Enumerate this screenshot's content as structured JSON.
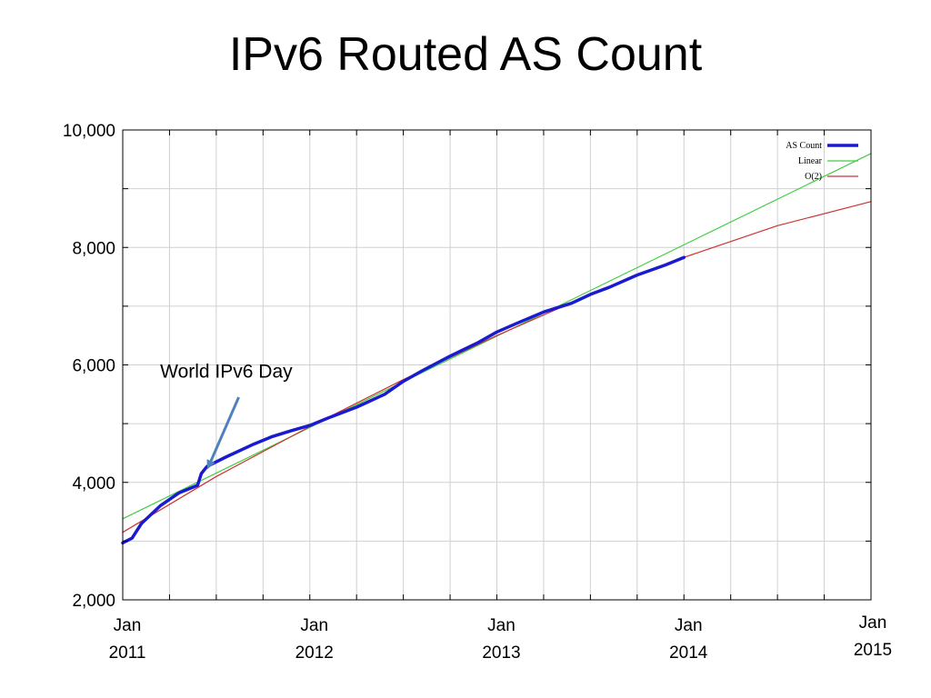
{
  "slide": {
    "title": "IPv6 Routed AS Count"
  },
  "chart_data": {
    "type": "line",
    "title": "IPv6 Routed AS Count",
    "xlabel": "",
    "ylabel": "",
    "xlim": [
      2011.0,
      2015.0
    ],
    "ylim": [
      2000,
      10000
    ],
    "grid": true,
    "legend_position": "top-right",
    "y_ticks": [
      {
        "value": 2000,
        "label": "2,000"
      },
      {
        "value": 4000,
        "label": "4,000"
      },
      {
        "value": 6000,
        "label": "6,000"
      },
      {
        "value": 8000,
        "label": "8,000"
      },
      {
        "value": 10000,
        "label": "10,000"
      }
    ],
    "x_ticks": [
      {
        "value": 2011.0,
        "line1": "Jan",
        "line2": "2011"
      },
      {
        "value": 2012.0,
        "line1": "Jan",
        "line2": "2012"
      },
      {
        "value": 2013.0,
        "line1": "Jan",
        "line2": "2013"
      },
      {
        "value": 2014.0,
        "line1": "Jan",
        "line2": "2014"
      },
      {
        "value": 2015.0,
        "line1": "Jan",
        "line2": "2015"
      }
    ],
    "series": [
      {
        "name": "AS Count",
        "color": "#1a1ad0",
        "style": "thick",
        "x": [
          2011.0,
          2011.05,
          2011.1,
          2011.2,
          2011.3,
          2011.4,
          2011.42,
          2011.45,
          2011.55,
          2011.7,
          2011.8,
          2011.9,
          2012.0,
          2012.1,
          2012.25,
          2012.4,
          2012.5,
          2012.6,
          2012.75,
          2012.9,
          2013.0,
          2013.1,
          2013.25,
          2013.4,
          2013.5,
          2013.6,
          2013.75,
          2013.9,
          2014.0
        ],
        "y": [
          2970,
          3050,
          3300,
          3600,
          3820,
          3950,
          4150,
          4270,
          4430,
          4650,
          4780,
          4880,
          4970,
          5100,
          5280,
          5500,
          5720,
          5900,
          6150,
          6380,
          6560,
          6700,
          6900,
          7050,
          7200,
          7320,
          7530,
          7700,
          7830
        ]
      },
      {
        "name": "Linear",
        "color": "#44cc44",
        "style": "thin",
        "x": [
          2011.0,
          2015.0
        ],
        "y": [
          3380,
          9600
        ]
      },
      {
        "name": "O(2)",
        "color": "#cc3333",
        "style": "thin",
        "x": [
          2011.0,
          2011.5,
          2012.0,
          2012.5,
          2013.0,
          2013.5,
          2014.0,
          2014.5,
          2015.0
        ],
        "y": [
          3150,
          4100,
          4950,
          5750,
          6500,
          7200,
          7830,
          8370,
          8780
        ]
      }
    ],
    "annotations": [
      {
        "text": "World IPv6 Day",
        "text_x": 2011.2,
        "text_y": 5780,
        "arrow_from_x": 2011.62,
        "arrow_from_y": 5450,
        "arrow_to_x": 2011.46,
        "arrow_to_y": 4280
      }
    ]
  }
}
